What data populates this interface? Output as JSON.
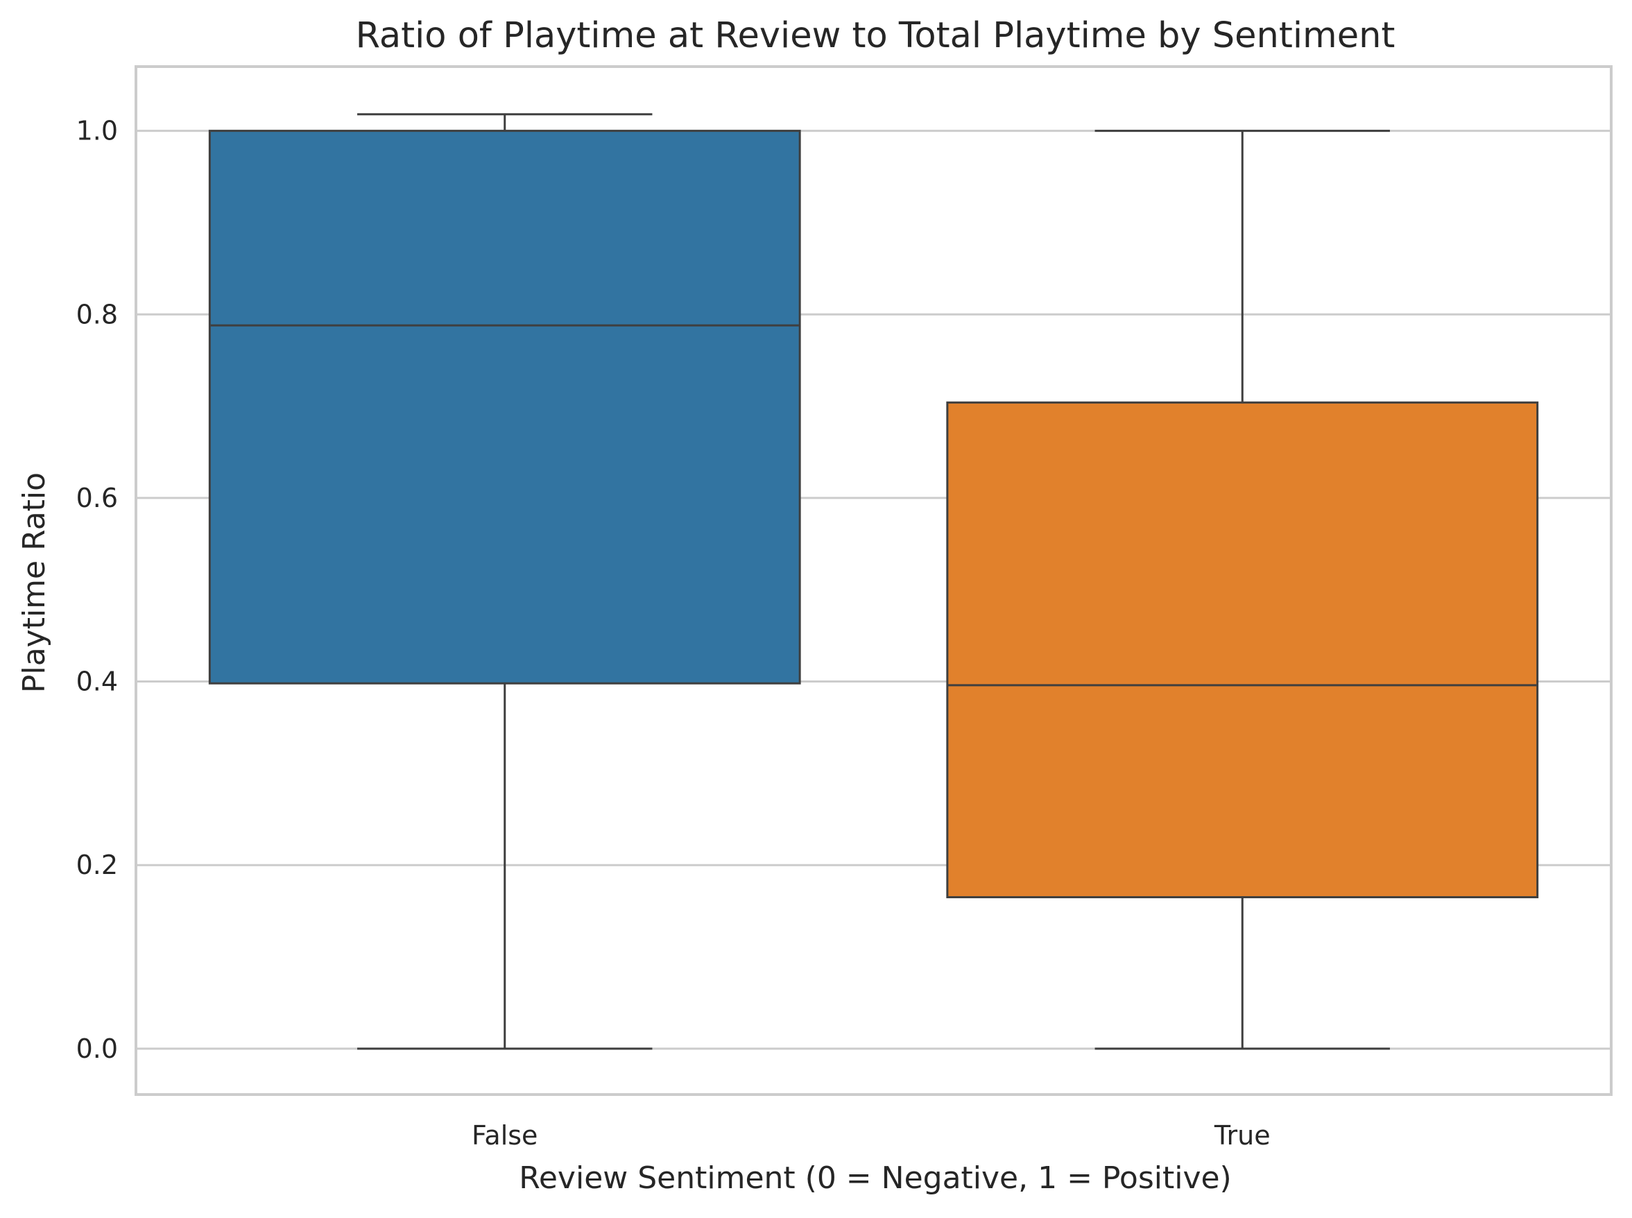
{
  "chart_data": {
    "type": "box",
    "title": "Ratio of Playtime at Review to Total Playtime by Sentiment",
    "xlabel": "Review Sentiment (0 = Negative, 1 = Positive)",
    "ylabel": "Playtime Ratio",
    "categories": [
      "False",
      "True"
    ],
    "ylim": [
      -0.05,
      1.07
    ],
    "yticks": [
      "0.0",
      "0.2",
      "0.4",
      "0.6",
      "0.8",
      "1.0"
    ],
    "grid": true,
    "series": [
      {
        "category": "False",
        "color": "#3274A1",
        "whisker_low": 0.0,
        "q1": 0.398,
        "median": 0.788,
        "q3": 1.0,
        "whisker_high": 1.018
      },
      {
        "category": "True",
        "color": "#E1812C",
        "whisker_low": 0.0,
        "q1": 0.165,
        "median": 0.396,
        "q3": 0.704,
        "whisker_high": 1.0
      }
    ]
  }
}
